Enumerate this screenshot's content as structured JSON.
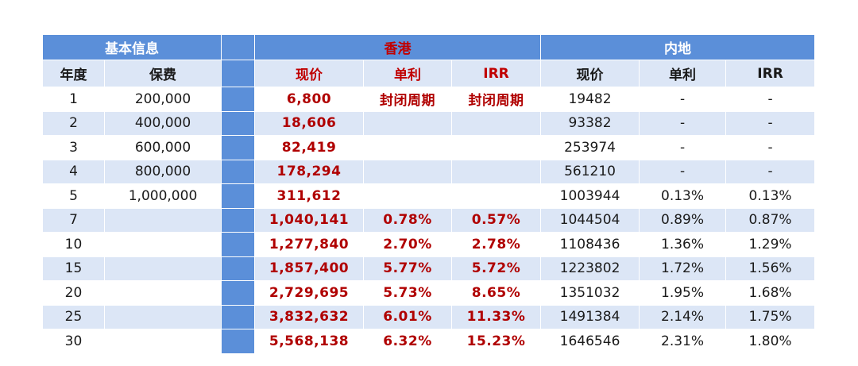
{
  "groups": {
    "basic": "基本信息",
    "hk": "香港",
    "mainland": "内地"
  },
  "headers": {
    "year": "年度",
    "premium": "保费",
    "hk_cash": "现价",
    "hk_simple": "单利",
    "hk_irr": "IRR",
    "ml_cash": "现价",
    "ml_simple": "单利",
    "ml_irr": "IRR"
  },
  "rows": [
    {
      "year": "1",
      "premium": "200,000",
      "hk_cash": "6,800",
      "hk_simple": "封闭周期",
      "hk_irr": "封闭周期",
      "ml_cash": "19482",
      "ml_simple": "-",
      "ml_irr": "-"
    },
    {
      "year": "2",
      "premium": "400,000",
      "hk_cash": "18,606",
      "hk_simple": "",
      "hk_irr": "",
      "ml_cash": "93382",
      "ml_simple": "-",
      "ml_irr": "-"
    },
    {
      "year": "3",
      "premium": "600,000",
      "hk_cash": "82,419",
      "hk_simple": "",
      "hk_irr": "",
      "ml_cash": "253974",
      "ml_simple": "-",
      "ml_irr": "-"
    },
    {
      "year": "4",
      "premium": "800,000",
      "hk_cash": "178,294",
      "hk_simple": "",
      "hk_irr": "",
      "ml_cash": "561210",
      "ml_simple": "-",
      "ml_irr": "-"
    },
    {
      "year": "5",
      "premium": "1,000,000",
      "hk_cash": "311,612",
      "hk_simple": "",
      "hk_irr": "",
      "ml_cash": "1003944",
      "ml_simple": "0.13%",
      "ml_irr": "0.13%"
    },
    {
      "year": "7",
      "premium": "",
      "hk_cash": "1,040,141",
      "hk_simple": "0.78%",
      "hk_irr": "0.57%",
      "ml_cash": "1044504",
      "ml_simple": "0.89%",
      "ml_irr": "0.87%"
    },
    {
      "year": "10",
      "premium": "",
      "hk_cash": "1,277,840",
      "hk_simple": "2.70%",
      "hk_irr": "2.78%",
      "ml_cash": "1108436",
      "ml_simple": "1.36%",
      "ml_irr": "1.29%"
    },
    {
      "year": "15",
      "premium": "",
      "hk_cash": "1,857,400",
      "hk_simple": "5.77%",
      "hk_irr": "5.72%",
      "ml_cash": "1223802",
      "ml_simple": "1.72%",
      "ml_irr": "1.56%"
    },
    {
      "year": "20",
      "premium": "",
      "hk_cash": "2,729,695",
      "hk_simple": "5.73%",
      "hk_irr": "8.65%",
      "ml_cash": "1351032",
      "ml_simple": "1.95%",
      "ml_irr": "1.68%"
    },
    {
      "year": "25",
      "premium": "",
      "hk_cash": "3,832,632",
      "hk_simple": "6.01%",
      "hk_irr": "11.33%",
      "ml_cash": "1491384",
      "ml_simple": "2.14%",
      "ml_irr": "1.75%"
    },
    {
      "year": "30",
      "premium": "",
      "hk_cash": "5,568,138",
      "hk_simple": "6.32%",
      "hk_irr": "15.23%",
      "ml_cash": "1646546",
      "ml_simple": "2.31%",
      "ml_irr": "1.80%"
    }
  ],
  "colors": {
    "header_blue": "#5b8fd9",
    "row_light": "#dce6f6",
    "hk_red": "#b00000"
  }
}
